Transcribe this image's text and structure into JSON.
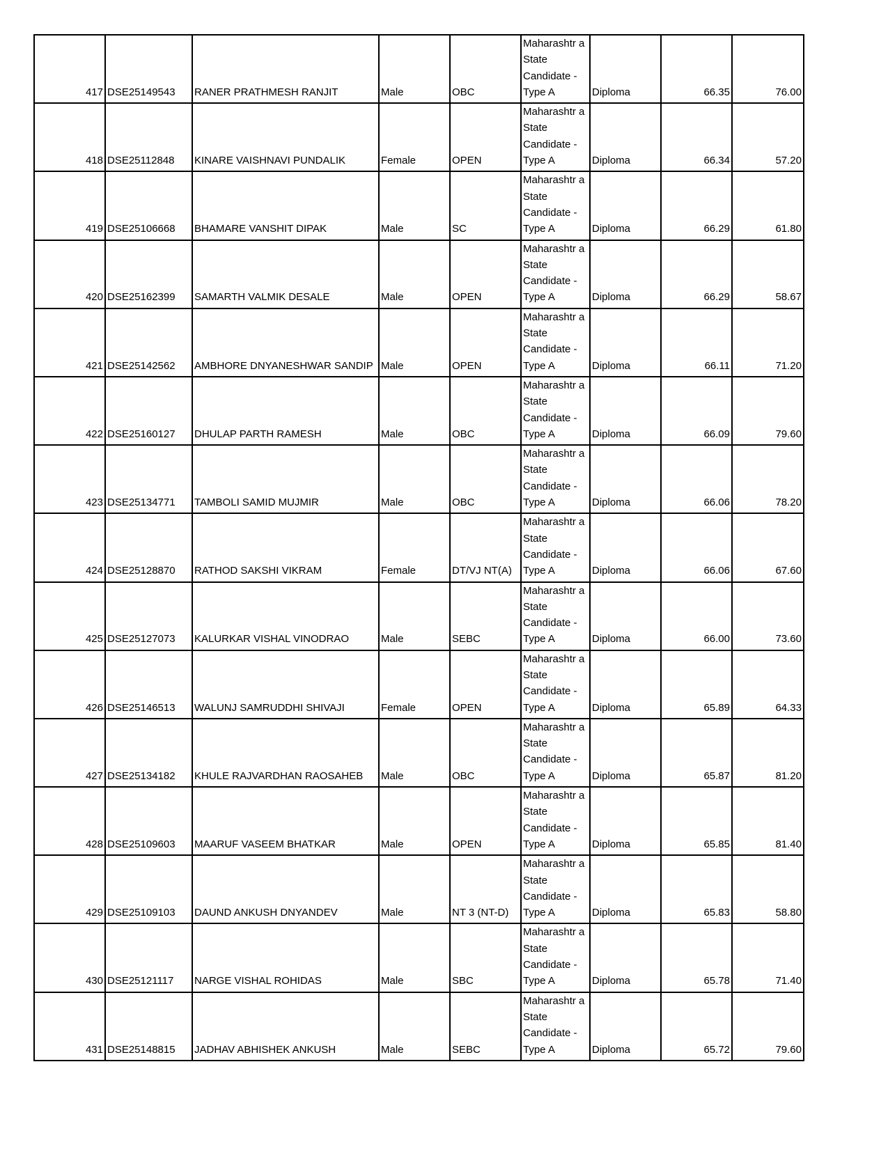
{
  "rows": [
    {
      "sr": "417",
      "app_id": "DSE25149543",
      "name": "RANER PRATHMESH RANJIT",
      "gender": "Male",
      "category": "OBC",
      "candidature": "Maharashtr a State Candidate - Type A",
      "qualification": "Diploma",
      "score": "66.35",
      "marks": "76.00"
    },
    {
      "sr": "418",
      "app_id": "DSE25112848",
      "name": "KINARE VAISHNAVI PUNDALIK",
      "gender": "Female",
      "category": "OPEN",
      "candidature": "Maharashtr a State Candidate - Type A",
      "qualification": "Diploma",
      "score": "66.34",
      "marks": "57.20"
    },
    {
      "sr": "419",
      "app_id": "DSE25106668",
      "name": "BHAMARE VANSHIT DIPAK",
      "gender": "Male",
      "category": "SC",
      "candidature": "Maharashtr a State Candidate - Type A",
      "qualification": "Diploma",
      "score": "66.29",
      "marks": "61.80"
    },
    {
      "sr": "420",
      "app_id": "DSE25162399",
      "name": "SAMARTH VALMIK DESALE",
      "gender": "Male",
      "category": "OPEN",
      "candidature": "Maharashtr a State Candidate - Type A",
      "qualification": "Diploma",
      "score": "66.29",
      "marks": "58.67"
    },
    {
      "sr": "421",
      "app_id": "DSE25142562",
      "name": "AMBHORE DNYANESHWAR SANDIP",
      "gender": "Male",
      "category": "OPEN",
      "candidature": "Maharashtr a State Candidate - Type A",
      "qualification": "Diploma",
      "score": "66.11",
      "marks": "71.20"
    },
    {
      "sr": "422",
      "app_id": "DSE25160127",
      "name": "DHULAP PARTH RAMESH",
      "gender": "Male",
      "category": "OBC",
      "candidature": "Maharashtr a State Candidate - Type A",
      "qualification": "Diploma",
      "score": "66.09",
      "marks": "79.60"
    },
    {
      "sr": "423",
      "app_id": "DSE25134771",
      "name": "TAMBOLI SAMID MUJMIR",
      "gender": "Male",
      "category": "OBC",
      "candidature": "Maharashtr a State Candidate - Type A",
      "qualification": "Diploma",
      "score": "66.06",
      "marks": "78.20"
    },
    {
      "sr": "424",
      "app_id": "DSE25128870",
      "name": "RATHOD SAKSHI VIKRAM",
      "gender": "Female",
      "category": "DT/VJ NT(A)",
      "candidature": "Maharashtr a State Candidate - Type A",
      "qualification": "Diploma",
      "score": "66.06",
      "marks": "67.60"
    },
    {
      "sr": "425",
      "app_id": "DSE25127073",
      "name": "KALURKAR VISHAL VINODRAO",
      "gender": "Male",
      "category": "SEBC",
      "candidature": "Maharashtr a State Candidate - Type A",
      "qualification": "Diploma",
      "score": "66.00",
      "marks": "73.60"
    },
    {
      "sr": "426",
      "app_id": "DSE25146513",
      "name": "WALUNJ SAMRUDDHI SHIVAJI",
      "gender": "Female",
      "category": "OPEN",
      "candidature": "Maharashtr a State Candidate - Type A",
      "qualification": "Diploma",
      "score": "65.89",
      "marks": "64.33"
    },
    {
      "sr": "427",
      "app_id": "DSE25134182",
      "name": "KHULE RAJVARDHAN RAOSAHEB",
      "gender": "Male",
      "category": "OBC",
      "candidature": "Maharashtr a State Candidate - Type A",
      "qualification": "Diploma",
      "score": "65.87",
      "marks": "81.20"
    },
    {
      "sr": "428",
      "app_id": "DSE25109603",
      "name": "MAARUF VASEEM BHATKAR",
      "gender": "Male",
      "category": "OPEN",
      "candidature": "Maharashtr a State Candidate - Type A",
      "qualification": "Diploma",
      "score": "65.85",
      "marks": "81.40"
    },
    {
      "sr": "429",
      "app_id": "DSE25109103",
      "name": "DAUND ANKUSH DNYANDEV",
      "gender": "Male",
      "category": "NT 3 (NT-D)",
      "candidature": "Maharashtr a State Candidate - Type A",
      "qualification": "Diploma",
      "score": "65.83",
      "marks": "58.80"
    },
    {
      "sr": "430",
      "app_id": "DSE25121117",
      "name": "NARGE VISHAL ROHIDAS",
      "gender": "Male",
      "category": "SBC",
      "candidature": "Maharashtr a State Candidate - Type A",
      "qualification": "Diploma",
      "score": "65.78",
      "marks": "71.40"
    },
    {
      "sr": "431",
      "app_id": "DSE25148815",
      "name": "JADHAV ABHISHEK ANKUSH",
      "gender": "Male",
      "category": "SEBC",
      "candidature": "Maharashtr a State Candidate - Type A",
      "qualification": "Diploma",
      "score": "65.72",
      "marks": "79.60"
    }
  ]
}
